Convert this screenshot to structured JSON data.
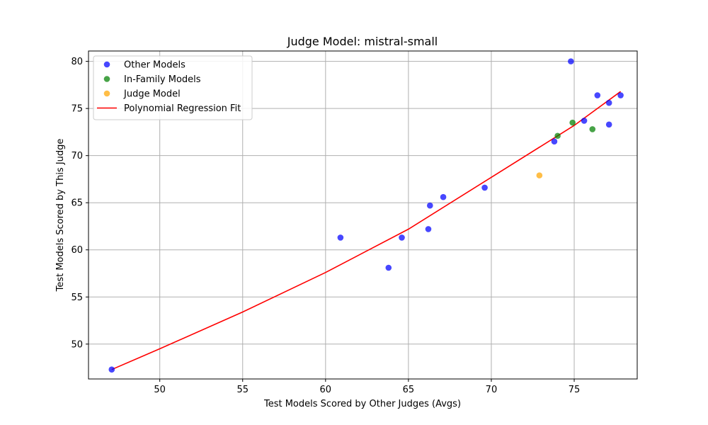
{
  "chart_data": {
    "type": "scatter",
    "title": "Judge Model: mistral-small",
    "xlabel": "Test Models Scored by Other Judges (Avgs)",
    "ylabel": "Test Models Scored by This Judge",
    "xlim": [
      45.7,
      78.8
    ],
    "ylim": [
      46.3,
      81.1
    ],
    "xticks": [
      "50",
      "55",
      "60",
      "65",
      "70",
      "75"
    ],
    "yticks": [
      "50",
      "55",
      "60",
      "65",
      "70",
      "75",
      "80"
    ],
    "grid": true,
    "legend_position": "top-left",
    "series": [
      {
        "name": "Other Models",
        "color": "#0000ff",
        "kind": "scatter",
        "points": [
          [
            47.1,
            47.3
          ],
          [
            60.9,
            61.3
          ],
          [
            63.8,
            58.1
          ],
          [
            64.6,
            61.3
          ],
          [
            66.2,
            62.2
          ],
          [
            66.3,
            64.7
          ],
          [
            67.1,
            65.6
          ],
          [
            69.6,
            66.6
          ],
          [
            73.8,
            71.5
          ],
          [
            74.8,
            80.0
          ],
          [
            75.6,
            73.7
          ],
          [
            76.4,
            76.4
          ],
          [
            77.1,
            75.6
          ],
          [
            77.1,
            73.3
          ],
          [
            77.8,
            76.4
          ]
        ]
      },
      {
        "name": "In-Family Models",
        "color": "#008000",
        "kind": "scatter",
        "points": [
          [
            74.0,
            72.1
          ],
          [
            74.9,
            73.5
          ],
          [
            76.1,
            72.8
          ]
        ]
      },
      {
        "name": "Judge Model",
        "color": "#ffa500",
        "kind": "scatter",
        "points": [
          [
            72.9,
            67.9
          ]
        ]
      },
      {
        "name": "Polynomial Regression Fit",
        "color": "#ff0000",
        "kind": "line",
        "points": [
          [
            47.1,
            47.3
          ],
          [
            50.0,
            49.5
          ],
          [
            55.0,
            53.4
          ],
          [
            60.0,
            57.6
          ],
          [
            65.0,
            62.2
          ],
          [
            70.0,
            67.7
          ],
          [
            75.0,
            73.2
          ],
          [
            77.8,
            76.8
          ]
        ]
      }
    ]
  }
}
